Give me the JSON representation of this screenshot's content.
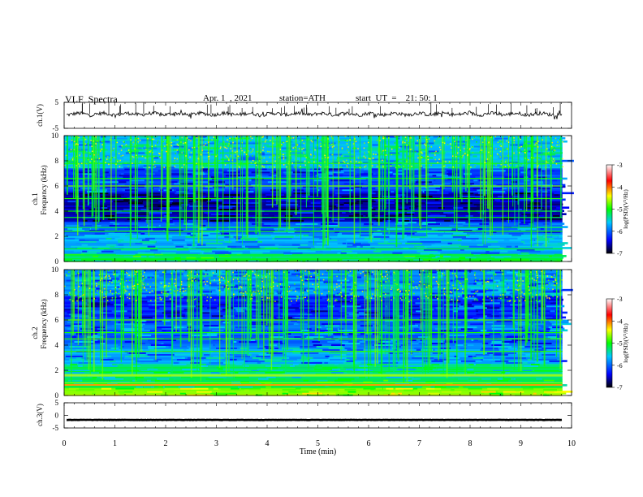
{
  "header": {
    "title": "VLF  Spectra",
    "date": "Apr. 1  , 2021",
    "station": "station=ATH",
    "start_ut": "start  UT  =    21: 50: 1"
  },
  "chart_data": [
    {
      "type": "line",
      "panel": "ch1-waveform",
      "ylabel": "ch.1(V)",
      "ylim": [
        -5,
        5
      ],
      "yticks": [
        "5",
        "-5"
      ],
      "xlim": [
        0,
        10
      ],
      "series": [
        {
          "values_description_mean": 0.5
        }
      ]
    },
    {
      "type": "heatmap",
      "panel": "ch1-spectrogram",
      "ylabel": "ch.1\nFrequency (kHz)",
      "ylabel_lines": [
        "ch.1",
        "Frequency (kHz)"
      ],
      "ylim": [
        0,
        10
      ],
      "yticks": [
        "0",
        "2",
        "4",
        "6",
        "8",
        "10"
      ],
      "xlim": [
        0,
        10
      ],
      "colorbar": {
        "label": "log(PSD)(V²/Hz)",
        "range": [
          -7,
          -3
        ],
        "ticks": [
          "-3",
          "-4",
          "-5",
          "-6",
          "-7"
        ]
      }
    },
    {
      "type": "heatmap",
      "panel": "ch2-spectrogram",
      "ylabel_lines": [
        "ch.2",
        "Frequency (kHz)"
      ],
      "ylim": [
        0,
        10
      ],
      "yticks": [
        "0",
        "2",
        "4",
        "6",
        "8",
        "10"
      ],
      "xlim": [
        0,
        10
      ],
      "colorbar": {
        "label": "log(PSD)(V²/Hz)",
        "range": [
          -7,
          -3
        ],
        "ticks": [
          "-3",
          "-4",
          "-5",
          "-6",
          "-7"
        ]
      }
    },
    {
      "type": "line",
      "panel": "ch3-waveform",
      "ylabel": "ch.3(V)",
      "ylim": [
        -5,
        5
      ],
      "yticks": [
        "5",
        "0",
        "-5"
      ],
      "xlim": [
        0,
        10
      ],
      "series": [
        {
          "values_description_mean": -1.8
        }
      ]
    }
  ],
  "xaxis": {
    "label": "Time  (min)",
    "ticks": [
      "0",
      "1",
      "2",
      "3",
      "4",
      "5",
      "6",
      "7",
      "8",
      "9",
      "10"
    ]
  },
  "colors": {
    "axis": "#000000",
    "colormap": [
      "#000000",
      "#0000ff",
      "#00c8ff",
      "#00ff00",
      "#ffff00",
      "#ff0000",
      "#ffffff"
    ]
  }
}
